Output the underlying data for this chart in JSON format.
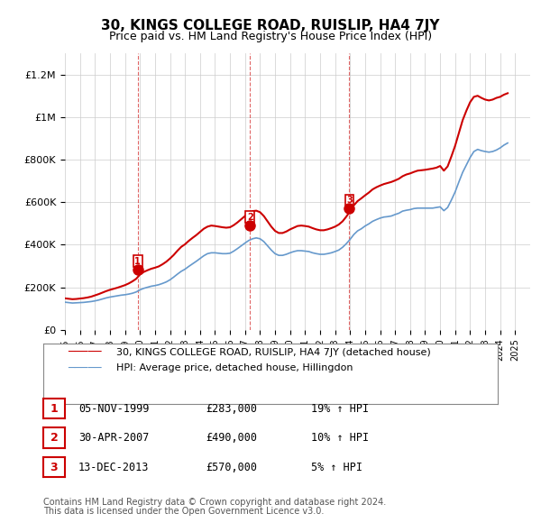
{
  "title": "30, KINGS COLLEGE ROAD, RUISLIP, HA4 7JY",
  "subtitle": "Price paid vs. HM Land Registry's House Price Index (HPI)",
  "ylabel_ticks": [
    "£0",
    "£200K",
    "£400K",
    "£600K",
    "£800K",
    "£1M",
    "£1.2M"
  ],
  "ytick_values": [
    0,
    200000,
    400000,
    600000,
    800000,
    1000000,
    1200000
  ],
  "ylim": [
    0,
    1300000
  ],
  "xlim_start": 1995,
  "xlim_end": 2026,
  "legend_line1": "30, KINGS COLLEGE ROAD, RUISLIP, HA4 7JY (detached house)",
  "legend_line2": "HPI: Average price, detached house, Hillingdon",
  "line_color_red": "#cc0000",
  "line_color_blue": "#6699cc",
  "transaction_markers": [
    {
      "label": "1",
      "year": 1999.85,
      "value": 283000,
      "date": "05-NOV-1999",
      "price": "£283,000",
      "hpi": "19% ↑ HPI"
    },
    {
      "label": "2",
      "year": 2007.33,
      "value": 490000,
      "date": "30-APR-2007",
      "price": "£490,000",
      "hpi": "10% ↑ HPI"
    },
    {
      "label": "3",
      "year": 2013.95,
      "value": 570000,
      "date": "13-DEC-2013",
      "price": "£570,000",
      "hpi": "5% ↑ HPI"
    }
  ],
  "footnote1": "Contains HM Land Registry data © Crown copyright and database right 2024.",
  "footnote2": "This data is licensed under the Open Government Licence v3.0.",
  "background_color": "#ffffff",
  "grid_color": "#cccccc",
  "hpi_data": {
    "years": [
      1995.0,
      1995.25,
      1995.5,
      1995.75,
      1996.0,
      1996.25,
      1996.5,
      1996.75,
      1997.0,
      1997.25,
      1997.5,
      1997.75,
      1998.0,
      1998.25,
      1998.5,
      1998.75,
      1999.0,
      1999.25,
      1999.5,
      1999.75,
      2000.0,
      2000.25,
      2000.5,
      2000.75,
      2001.0,
      2001.25,
      2001.5,
      2001.75,
      2002.0,
      2002.25,
      2002.5,
      2002.75,
      2003.0,
      2003.25,
      2003.5,
      2003.75,
      2004.0,
      2004.25,
      2004.5,
      2004.75,
      2005.0,
      2005.25,
      2005.5,
      2005.75,
      2006.0,
      2006.25,
      2006.5,
      2006.75,
      2007.0,
      2007.25,
      2007.5,
      2007.75,
      2008.0,
      2008.25,
      2008.5,
      2008.75,
      2009.0,
      2009.25,
      2009.5,
      2009.75,
      2010.0,
      2010.25,
      2010.5,
      2010.75,
      2011.0,
      2011.25,
      2011.5,
      2011.75,
      2012.0,
      2012.25,
      2012.5,
      2012.75,
      2013.0,
      2013.25,
      2013.5,
      2013.75,
      2014.0,
      2014.25,
      2014.5,
      2014.75,
      2015.0,
      2015.25,
      2015.5,
      2015.75,
      2016.0,
      2016.25,
      2016.5,
      2016.75,
      2017.0,
      2017.25,
      2017.5,
      2017.75,
      2018.0,
      2018.25,
      2018.5,
      2018.75,
      2019.0,
      2019.25,
      2019.5,
      2019.75,
      2020.0,
      2020.25,
      2020.5,
      2020.75,
      2021.0,
      2021.25,
      2021.5,
      2021.75,
      2022.0,
      2022.25,
      2022.5,
      2022.75,
      2023.0,
      2023.25,
      2023.5,
      2023.75,
      2024.0,
      2024.25,
      2024.5
    ],
    "values": [
      130000,
      128000,
      126000,
      127000,
      128000,
      129000,
      131000,
      133000,
      136000,
      140000,
      145000,
      150000,
      154000,
      157000,
      160000,
      163000,
      165000,
      168000,
      172000,
      178000,
      188000,
      195000,
      200000,
      205000,
      208000,
      212000,
      218000,
      225000,
      235000,
      248000,
      262000,
      275000,
      285000,
      298000,
      310000,
      322000,
      335000,
      348000,
      358000,
      362000,
      362000,
      360000,
      358000,
      358000,
      360000,
      370000,
      382000,
      395000,
      408000,
      420000,
      428000,
      432000,
      428000,
      415000,
      395000,
      375000,
      358000,
      350000,
      350000,
      355000,
      362000,
      368000,
      372000,
      372000,
      370000,
      368000,
      362000,
      358000,
      355000,
      355000,
      358000,
      362000,
      368000,
      375000,
      388000,
      405000,
      425000,
      448000,
      465000,
      475000,
      488000,
      498000,
      510000,
      518000,
      525000,
      530000,
      532000,
      535000,
      542000,
      548000,
      558000,
      562000,
      565000,
      570000,
      572000,
      572000,
      572000,
      572000,
      572000,
      575000,
      578000,
      560000,
      575000,
      610000,
      648000,
      695000,
      740000,
      775000,
      810000,
      838000,
      848000,
      842000,
      838000,
      835000,
      838000,
      845000,
      855000,
      868000,
      878000
    ]
  },
  "price_paid_data": {
    "years": [
      1995.0,
      1995.25,
      1995.5,
      1995.75,
      1996.0,
      1996.25,
      1996.5,
      1996.75,
      1997.0,
      1997.25,
      1997.5,
      1997.75,
      1998.0,
      1998.25,
      1998.5,
      1998.75,
      1999.0,
      1999.25,
      1999.5,
      1999.75,
      2000.0,
      2000.25,
      2000.5,
      2000.75,
      2001.0,
      2001.25,
      2001.5,
      2001.75,
      2002.0,
      2002.25,
      2002.5,
      2002.75,
      2003.0,
      2003.25,
      2003.5,
      2003.75,
      2004.0,
      2004.25,
      2004.5,
      2004.75,
      2005.0,
      2005.25,
      2005.5,
      2005.75,
      2006.0,
      2006.25,
      2006.5,
      2006.75,
      2007.0,
      2007.25,
      2007.5,
      2007.75,
      2008.0,
      2008.25,
      2008.5,
      2008.75,
      2009.0,
      2009.25,
      2009.5,
      2009.75,
      2010.0,
      2010.25,
      2010.5,
      2010.75,
      2011.0,
      2011.25,
      2011.5,
      2011.75,
      2012.0,
      2012.25,
      2012.5,
      2012.75,
      2013.0,
      2013.25,
      2013.5,
      2013.75,
      2014.0,
      2014.25,
      2014.5,
      2014.75,
      2015.0,
      2015.25,
      2015.5,
      2015.75,
      2016.0,
      2016.25,
      2016.5,
      2016.75,
      2017.0,
      2017.25,
      2017.5,
      2017.75,
      2018.0,
      2018.25,
      2018.5,
      2018.75,
      2019.0,
      2019.25,
      2019.5,
      2019.75,
      2020.0,
      2020.25,
      2020.5,
      2020.75,
      2021.0,
      2021.25,
      2021.5,
      2021.75,
      2022.0,
      2022.25,
      2022.5,
      2022.75,
      2023.0,
      2023.25,
      2023.5,
      2023.75,
      2024.0,
      2024.25,
      2024.5
    ],
    "values": [
      148000,
      146000,
      144000,
      145000,
      147000,
      149000,
      152000,
      156000,
      162000,
      168000,
      175000,
      182000,
      188000,
      193000,
      198000,
      204000,
      210000,
      218000,
      228000,
      240000,
      260000,
      272000,
      280000,
      287000,
      292000,
      298000,
      308000,
      320000,
      335000,
      352000,
      372000,
      390000,
      402000,
      418000,
      432000,
      445000,
      460000,
      475000,
      485000,
      490000,
      488000,
      485000,
      482000,
      480000,
      482000,
      492000,
      505000,
      520000,
      535000,
      550000,
      558000,
      560000,
      553000,
      535000,
      510000,
      485000,
      465000,
      455000,
      455000,
      462000,
      472000,
      480000,
      488000,
      490000,
      488000,
      485000,
      478000,
      472000,
      468000,
      468000,
      472000,
      478000,
      485000,
      495000,
      510000,
      532000,
      558000,
      585000,
      605000,
      618000,
      632000,
      645000,
      660000,
      670000,
      678000,
      685000,
      690000,
      695000,
      702000,
      710000,
      722000,
      730000,
      735000,
      742000,
      748000,
      750000,
      752000,
      755000,
      758000,
      762000,
      770000,
      748000,
      768000,
      815000,
      865000,
      925000,
      985000,
      1030000,
      1070000,
      1095000,
      1100000,
      1090000,
      1082000,
      1078000,
      1082000,
      1090000,
      1095000,
      1105000,
      1112000
    ]
  }
}
